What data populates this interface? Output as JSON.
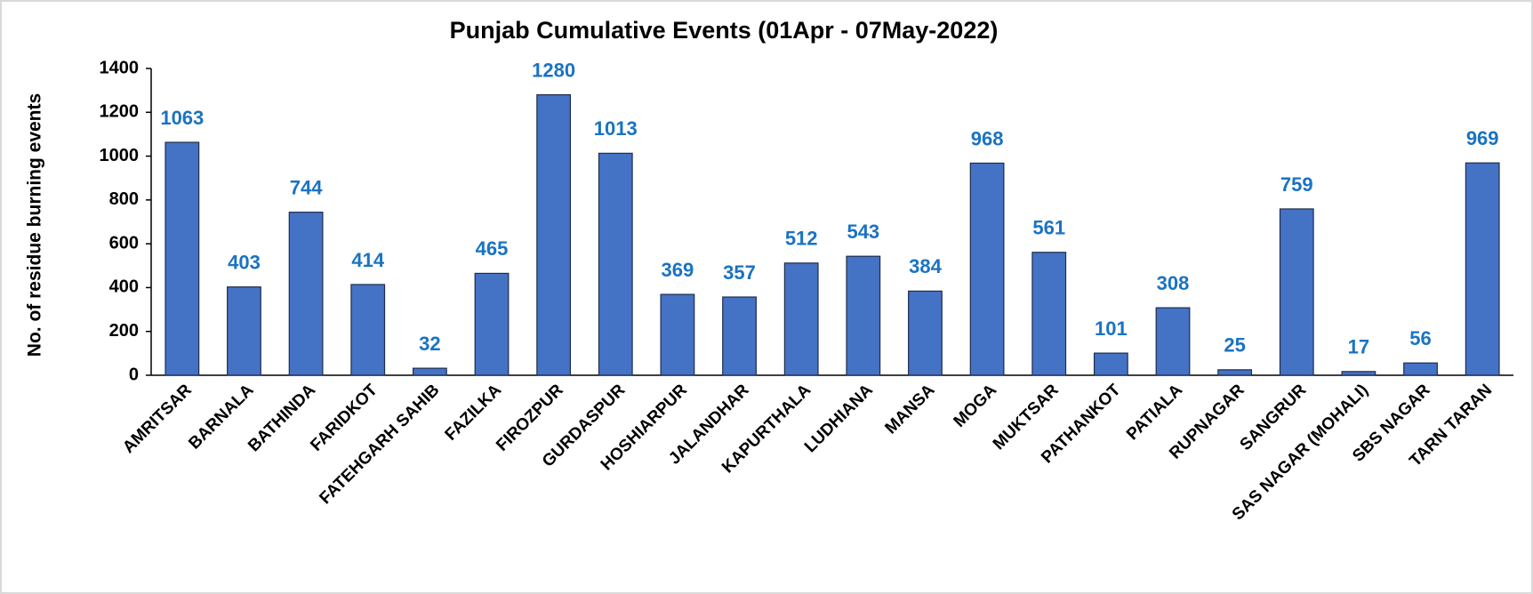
{
  "chart_data": {
    "type": "bar",
    "title": "Punjab Cumulative Events (01Apr - 07May-2022)",
    "y_label": "No. of residue burning events",
    "categories": [
      "AMRITSAR",
      "BARNALA",
      "BATHINDA",
      "FARIDKOT",
      "FATEHGARH SAHIB",
      "FAZILKA",
      "FIROZPUR",
      "GURDASPUR",
      "HOSHIARPUR",
      "JALANDHAR",
      "KAPURTHALA",
      "LUDHIANA",
      "MANSA",
      "MOGA",
      "MUKTSAR",
      "PATHANKOT",
      "PATIALA",
      "RUPNAGAR",
      "SANGRUR",
      "SAS NAGAR (MOHALI)",
      "SBS NAGAR",
      "TARN TARAN"
    ],
    "values": [
      1063,
      403,
      744,
      414,
      32,
      465,
      1280,
      1013,
      369,
      357,
      512,
      543,
      384,
      968,
      561,
      101,
      308,
      25,
      759,
      17,
      56,
      969
    ],
    "color": "#4472c4",
    "ylim": [
      0,
      1400
    ],
    "yticks": [
      0,
      200,
      400,
      600,
      800,
      1000,
      1200,
      1400
    ],
    "grid": false
  }
}
